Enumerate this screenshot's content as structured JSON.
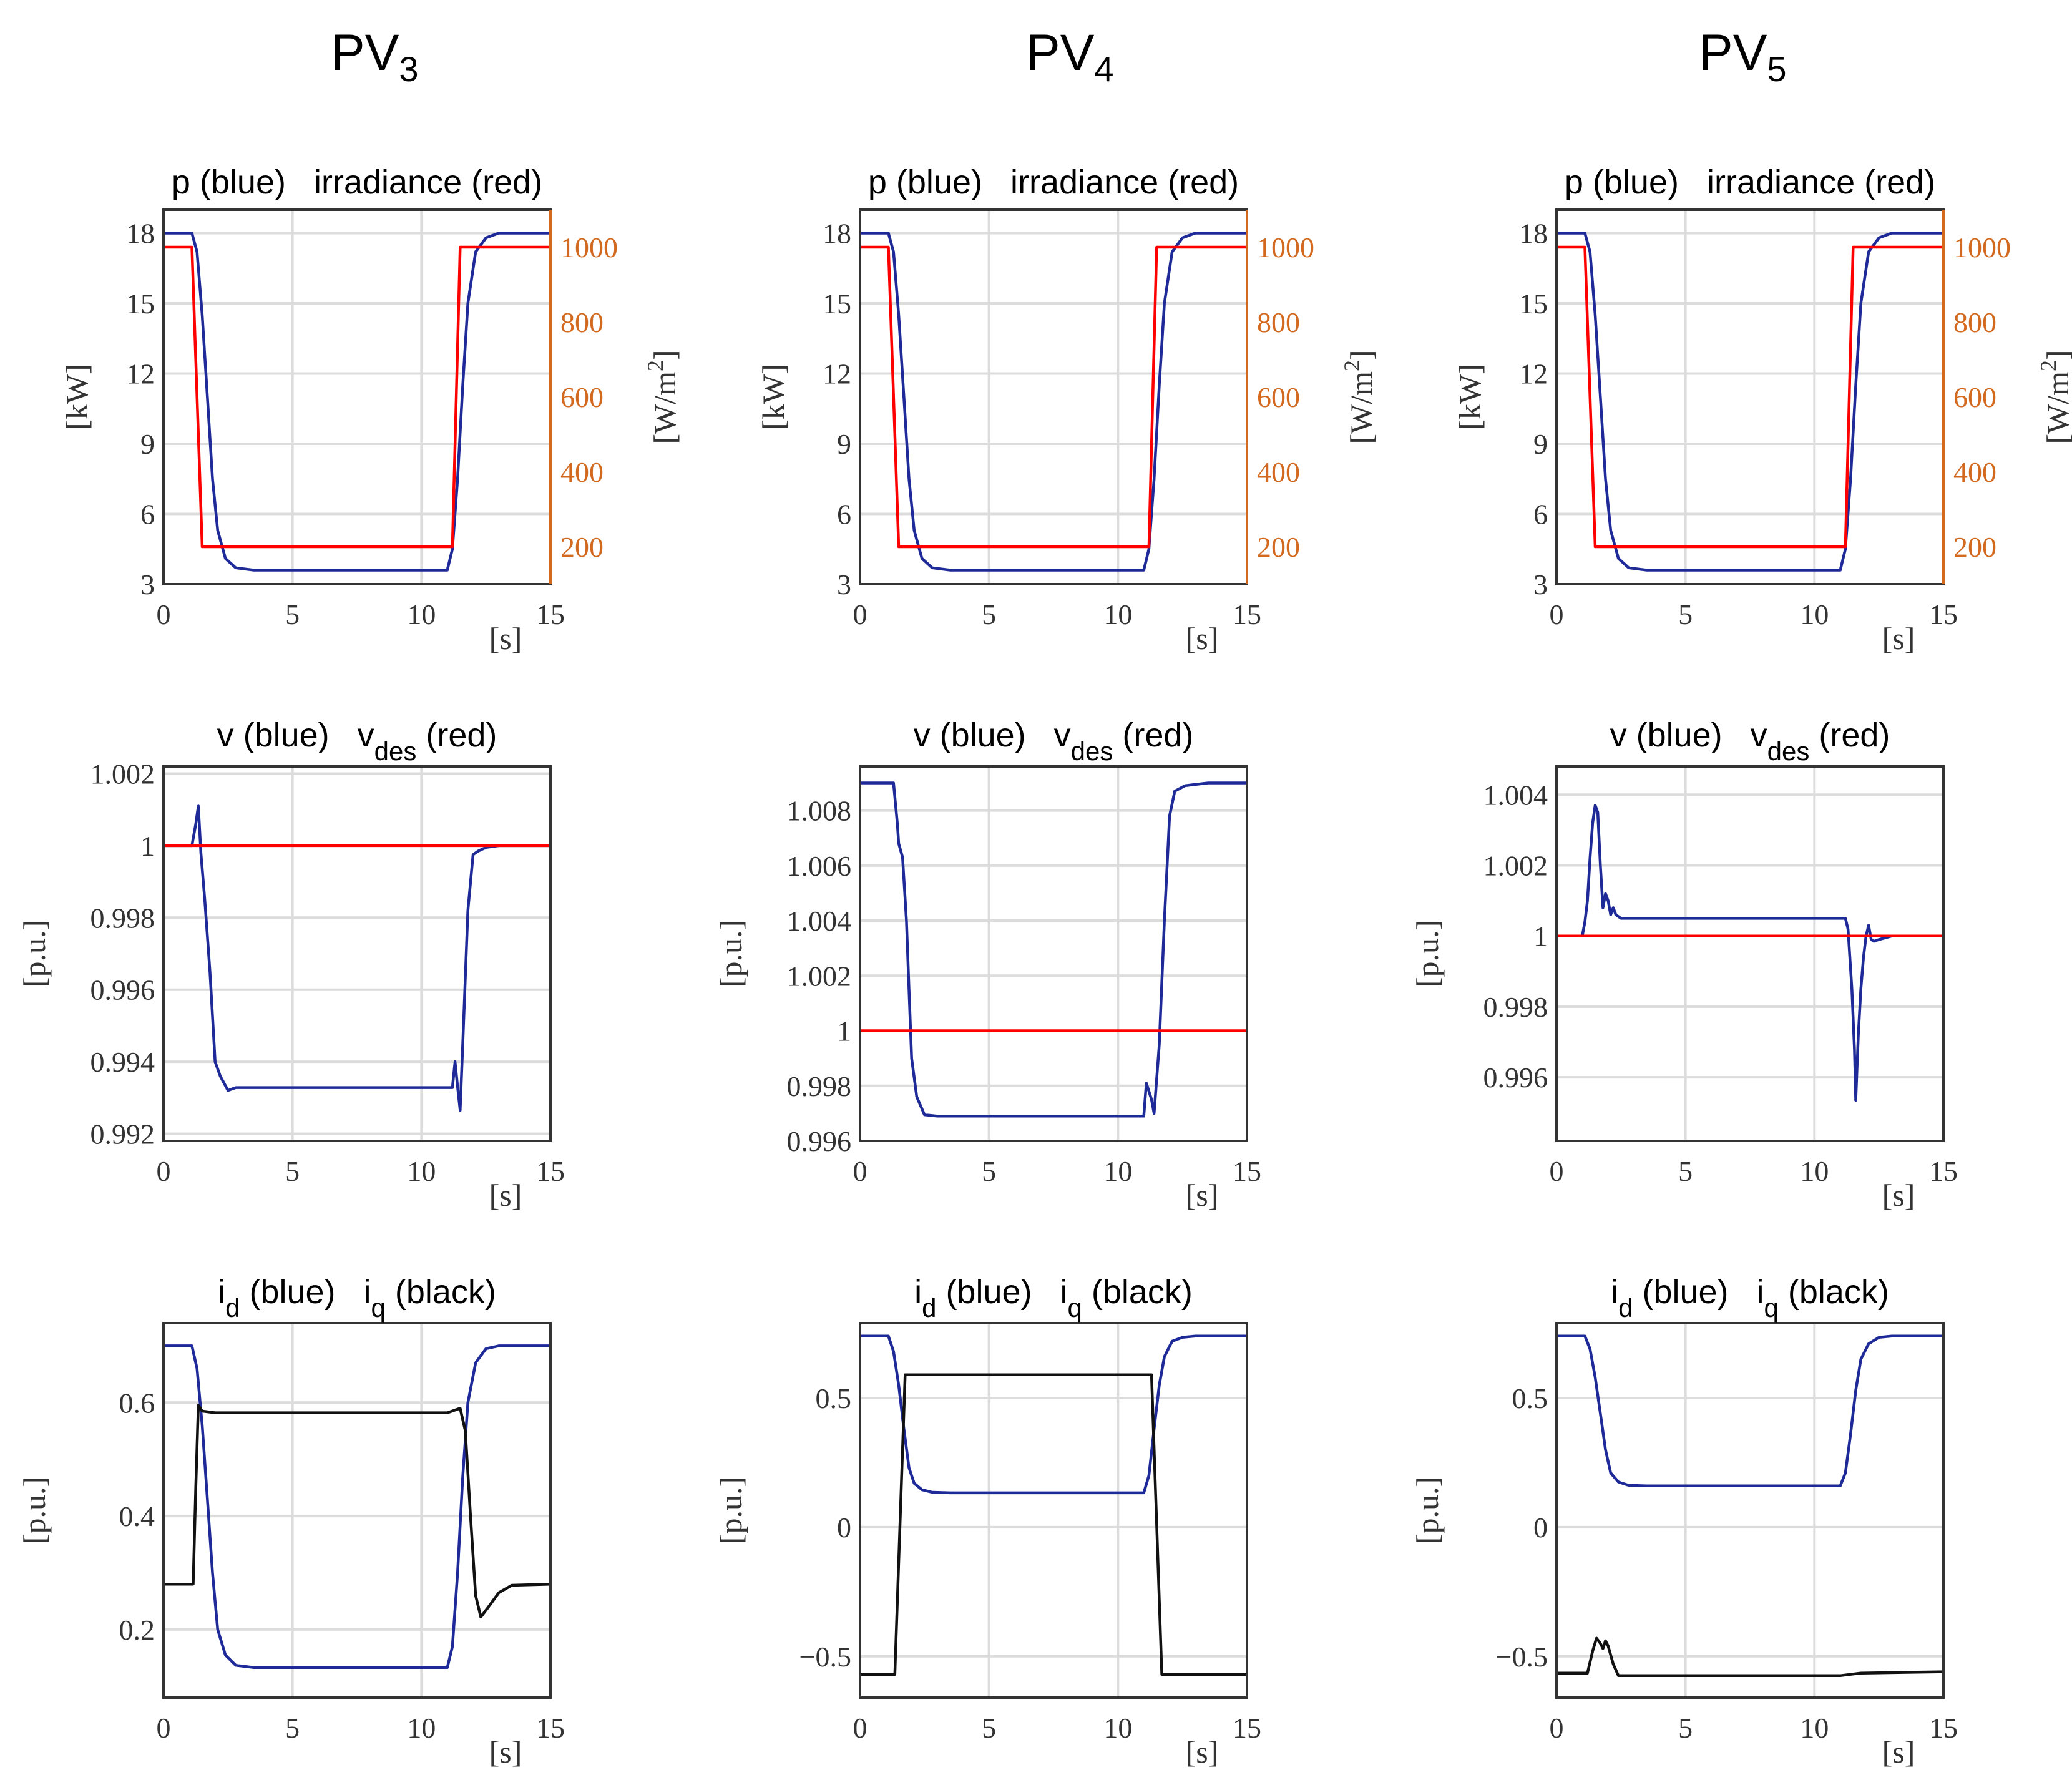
{
  "columns": [
    {
      "title": "PV",
      "subscript": "3"
    },
    {
      "title": "PV",
      "subscript": "4"
    },
    {
      "title": "PV",
      "subscript": "5"
    }
  ],
  "row_titles": {
    "power": {
      "text": "p (blue)   irradiance (red)"
    },
    "voltage": {
      "pre": "v (blue)   v",
      "sub": "des",
      "post": " (red)"
    },
    "current": {
      "a": "i",
      "a_sub": "d",
      "b": " (blue)   i",
      "b_sub": "q",
      "c": " (black)"
    }
  },
  "labels": {
    "power_left": "[kW]",
    "power_right": "[W/m2]",
    "pu": "[p.u.]",
    "time": "[s]"
  },
  "colors": {
    "blue": "#1f2a99",
    "red": "#ff0000",
    "black": "#111111",
    "orange": "#d2691e"
  },
  "chart_data": [
    {
      "type": "line",
      "id": "pv3-power",
      "title": "p (blue)   irradiance (red)",
      "xlabel": "[s]",
      "ylabel": "[kW]",
      "y2label": "[W/m2]",
      "xlim": [
        0,
        15
      ],
      "xticks": [
        0,
        5,
        10,
        15
      ],
      "ylim": [
        3,
        19
      ],
      "yticks": [
        3,
        6,
        9,
        12,
        15,
        18
      ],
      "y2lim": [
        100,
        1100
      ],
      "y2ticks": [
        200,
        400,
        600,
        800,
        1000
      ],
      "series": [
        {
          "name": "p",
          "color": "blue",
          "axis": "left",
          "x": [
            0,
            1.1,
            1.3,
            1.5,
            1.7,
            1.9,
            2.1,
            2.4,
            2.8,
            3.5,
            11.0,
            11.2,
            11.4,
            11.6,
            11.8,
            12.1,
            12.5,
            13.0,
            15
          ],
          "y": [
            18,
            18,
            17.2,
            14.5,
            11,
            7.5,
            5.3,
            4.1,
            3.7,
            3.6,
            3.6,
            4.5,
            7.5,
            11.5,
            15,
            17.2,
            17.8,
            18,
            18
          ]
        },
        {
          "name": "irradiance",
          "color": "red",
          "axis": "right",
          "x": [
            0,
            1.1,
            1.5,
            11.2,
            11.5,
            15
          ],
          "y": [
            1000,
            1000,
            200,
            200,
            1000,
            1000
          ]
        }
      ]
    },
    {
      "type": "line",
      "id": "pv4-power",
      "title": "p (blue)   irradiance (red)",
      "xlabel": "[s]",
      "ylabel": "[kW]",
      "y2label": "[W/m2]",
      "xlim": [
        0,
        15
      ],
      "xticks": [
        0,
        5,
        10,
        15
      ],
      "ylim": [
        3,
        19
      ],
      "yticks": [
        3,
        6,
        9,
        12,
        15,
        18
      ],
      "y2lim": [
        100,
        1100
      ],
      "y2ticks": [
        200,
        400,
        600,
        800,
        1000
      ],
      "series": [
        {
          "name": "p",
          "color": "blue",
          "axis": "left",
          "x": [
            0,
            1.1,
            1.3,
            1.5,
            1.7,
            1.9,
            2.1,
            2.4,
            2.8,
            3.5,
            11.0,
            11.2,
            11.4,
            11.6,
            11.8,
            12.1,
            12.5,
            13.0,
            15
          ],
          "y": [
            18,
            18,
            17.2,
            14.5,
            11,
            7.5,
            5.3,
            4.1,
            3.7,
            3.6,
            3.6,
            4.5,
            7.5,
            11.5,
            15,
            17.2,
            17.8,
            18,
            18
          ]
        },
        {
          "name": "irradiance",
          "color": "red",
          "axis": "right",
          "x": [
            0,
            1.1,
            1.5,
            11.2,
            11.5,
            15
          ],
          "y": [
            1000,
            1000,
            200,
            200,
            1000,
            1000
          ]
        }
      ]
    },
    {
      "type": "line",
      "id": "pv5-power",
      "title": "p (blue)   irradiance (red)",
      "xlabel": "[s]",
      "ylabel": "[kW]",
      "y2label": "[W/m2]",
      "xlim": [
        0,
        15
      ],
      "xticks": [
        0,
        5,
        10,
        15
      ],
      "ylim": [
        3,
        19
      ],
      "yticks": [
        3,
        6,
        9,
        12,
        15,
        18
      ],
      "y2lim": [
        100,
        1100
      ],
      "y2ticks": [
        200,
        400,
        600,
        800,
        1000
      ],
      "series": [
        {
          "name": "p",
          "color": "blue",
          "axis": "left",
          "x": [
            0,
            1.1,
            1.3,
            1.5,
            1.7,
            1.9,
            2.1,
            2.4,
            2.8,
            3.5,
            11.0,
            11.2,
            11.4,
            11.6,
            11.8,
            12.1,
            12.5,
            13.0,
            15
          ],
          "y": [
            18,
            18,
            17.2,
            14.5,
            11,
            7.5,
            5.3,
            4.1,
            3.7,
            3.6,
            3.6,
            4.5,
            7.5,
            11.5,
            15,
            17.2,
            17.8,
            18,
            18
          ]
        },
        {
          "name": "irradiance",
          "color": "red",
          "axis": "right",
          "x": [
            0,
            1.1,
            1.5,
            11.2,
            11.5,
            15
          ],
          "y": [
            1000,
            1000,
            200,
            200,
            1000,
            1000
          ]
        }
      ]
    },
    {
      "type": "line",
      "id": "pv3-voltage",
      "title": "v (blue)   vdes (red)",
      "xlabel": "[s]",
      "ylabel": "[p.u.]",
      "xlim": [
        0,
        15
      ],
      "xticks": [
        0,
        5,
        10,
        15
      ],
      "ylim": [
        0.9918,
        1.0022
      ],
      "yticks": [
        0.992,
        0.994,
        0.996,
        0.998,
        1,
        1.002
      ],
      "ytick_labels": [
        "0.992",
        "0.994",
        "0.996",
        "0.998",
        "1",
        "1.002"
      ],
      "series": [
        {
          "name": "v",
          "color": "blue",
          "axis": "left",
          "x": [
            0,
            1.1,
            1.25,
            1.35,
            1.45,
            1.6,
            1.8,
            2.0,
            2.2,
            2.5,
            2.8,
            11.2,
            11.3,
            11.4,
            11.5,
            11.6,
            11.8,
            12.0,
            12.2,
            12.5,
            13,
            15
          ],
          "y": [
            1.0,
            1.0,
            1.0006,
            1.0011,
            0.9998,
            0.9985,
            0.9965,
            0.994,
            0.9936,
            0.9932,
            0.99328,
            0.99328,
            0.994,
            0.9933,
            0.99265,
            0.9945,
            0.9982,
            0.99975,
            0.99985,
            0.99995,
            1.0,
            1.0
          ]
        },
        {
          "name": "vdes",
          "color": "red",
          "axis": "left",
          "x": [
            0,
            15
          ],
          "y": [
            1.0,
            1.0
          ]
        }
      ]
    },
    {
      "type": "line",
      "id": "pv4-voltage",
      "title": "v (blue)   vdes (red)",
      "xlabel": "[s]",
      "ylabel": "[p.u.]",
      "xlim": [
        0,
        15
      ],
      "xticks": [
        0,
        5,
        10,
        15
      ],
      "ylim": [
        0.996,
        1.0096
      ],
      "yticks": [
        0.996,
        0.998,
        1,
        1.002,
        1.004,
        1.006,
        1.008
      ],
      "ytick_labels": [
        "0.996",
        "0.998",
        "1",
        "1.002",
        "1.004",
        "1.006",
        "1.008"
      ],
      "series": [
        {
          "name": "v",
          "color": "blue",
          "axis": "left",
          "x": [
            0,
            1.3,
            1.45,
            1.5,
            1.65,
            1.8,
            1.9,
            2.0,
            2.2,
            2.5,
            3,
            11.0,
            11.1,
            11.3,
            11.4,
            11.6,
            11.8,
            12.0,
            12.2,
            12.6,
            13.5,
            15
          ],
          "y": [
            1.009,
            1.009,
            1.0075,
            1.0068,
            1.0063,
            1.004,
            1.0015,
            0.999,
            0.9976,
            0.99695,
            0.9969,
            0.9969,
            0.9981,
            0.9975,
            0.997,
            0.9995,
            1.004,
            1.0078,
            1.0087,
            1.0089,
            1.009,
            1.009
          ]
        },
        {
          "name": "vdes",
          "color": "red",
          "axis": "left",
          "x": [
            0,
            15
          ],
          "y": [
            1.0,
            1.0
          ]
        }
      ]
    },
    {
      "type": "line",
      "id": "pv5-voltage",
      "title": "v (blue)   vdes (red)",
      "xlabel": "[s]",
      "ylabel": "[p.u.]",
      "xlim": [
        0,
        15
      ],
      "xticks": [
        0,
        5,
        10,
        15
      ],
      "ylim": [
        0.9942,
        1.0048
      ],
      "yticks": [
        0.996,
        0.998,
        1,
        1.002,
        1.004
      ],
      "ytick_labels": [
        "0.996",
        "0.998",
        "1",
        "1.002",
        "1.004"
      ],
      "series": [
        {
          "name": "v",
          "color": "blue",
          "axis": "left",
          "x": [
            0,
            1.0,
            1.1,
            1.2,
            1.3,
            1.4,
            1.5,
            1.6,
            1.7,
            1.8,
            1.9,
            2.0,
            2.1,
            2.2,
            2.3,
            2.5,
            3.0,
            11.2,
            11.3,
            11.45,
            11.55,
            11.6,
            11.7,
            11.8,
            11.9,
            12.0,
            12.1,
            12.2,
            12.3,
            12.5,
            13,
            15
          ],
          "y": [
            1.0,
            1.0,
            1.0004,
            1.001,
            1.0022,
            1.0032,
            1.0037,
            1.0035,
            1.002,
            1.0008,
            1.0012,
            1.001,
            1.0006,
            1.0008,
            1.0006,
            1.0005,
            1.0005,
            1.0005,
            1.0002,
            0.9985,
            0.9968,
            0.99535,
            0.9972,
            0.9985,
            0.9994,
            1.0,
            1.0003,
            0.9999,
            0.99985,
            0.9999,
            1.0,
            1.0
          ]
        },
        {
          "name": "vdes",
          "color": "red",
          "axis": "left",
          "x": [
            0,
            15
          ],
          "y": [
            1.0,
            1.0
          ]
        }
      ]
    },
    {
      "type": "line",
      "id": "pv3-current",
      "title": "id (blue)   iq (black)",
      "xlabel": "[s]",
      "ylabel": "[p.u.]",
      "xlim": [
        0,
        15
      ],
      "xticks": [
        0,
        5,
        10,
        15
      ],
      "ylim": [
        0.08,
        0.74
      ],
      "yticks": [
        0.2,
        0.4,
        0.6
      ],
      "ytick_labels": [
        "0.2",
        "0.4",
        "0.6"
      ],
      "series": [
        {
          "name": "id",
          "color": "blue",
          "axis": "left",
          "x": [
            0,
            1.1,
            1.3,
            1.5,
            1.7,
            1.9,
            2.1,
            2.4,
            2.8,
            3.5,
            11.0,
            11.2,
            11.4,
            11.6,
            11.8,
            12.1,
            12.5,
            13.0,
            15
          ],
          "y": [
            0.7,
            0.7,
            0.66,
            0.56,
            0.43,
            0.3,
            0.2,
            0.155,
            0.137,
            0.133,
            0.133,
            0.17,
            0.3,
            0.47,
            0.6,
            0.67,
            0.695,
            0.7,
            0.7
          ]
        },
        {
          "name": "iq",
          "color": "black",
          "axis": "left",
          "x": [
            0,
            1.15,
            1.25,
            1.35,
            1.5,
            2.0,
            11.0,
            11.5,
            11.7,
            11.9,
            12.1,
            12.3,
            12.6,
            13.0,
            13.5,
            15
          ],
          "y": [
            0.28,
            0.28,
            0.45,
            0.595,
            0.585,
            0.582,
            0.582,
            0.59,
            0.55,
            0.4,
            0.26,
            0.222,
            0.24,
            0.265,
            0.278,
            0.28
          ]
        }
      ]
    },
    {
      "type": "line",
      "id": "pv4-current",
      "title": "id (blue)   iq (black)",
      "xlabel": "[s]",
      "ylabel": "[p.u.]",
      "xlim": [
        0,
        15
      ],
      "xticks": [
        0,
        5,
        10,
        15
      ],
      "ylim": [
        -0.66,
        0.79
      ],
      "yticks": [
        -0.5,
        0,
        0.5
      ],
      "ytick_labels": [
        "−0.5",
        "0",
        "0.5"
      ],
      "series": [
        {
          "name": "id",
          "color": "blue",
          "axis": "left",
          "x": [
            0,
            1.1,
            1.3,
            1.5,
            1.7,
            1.9,
            2.1,
            2.4,
            2.8,
            3.5,
            11.0,
            11.2,
            11.4,
            11.6,
            11.8,
            12.1,
            12.5,
            13.0,
            15
          ],
          "y": [
            0.74,
            0.74,
            0.68,
            0.55,
            0.38,
            0.23,
            0.17,
            0.145,
            0.135,
            0.133,
            0.133,
            0.2,
            0.38,
            0.55,
            0.66,
            0.72,
            0.735,
            0.74,
            0.74
          ]
        },
        {
          "name": "iq",
          "color": "black",
          "axis": "left",
          "x": [
            0,
            1.35,
            1.75,
            11.3,
            11.7,
            15
          ],
          "y": [
            -0.57,
            -0.57,
            0.59,
            0.59,
            -0.57,
            -0.57
          ]
        }
      ]
    },
    {
      "type": "line",
      "id": "pv5-current",
      "title": "id (blue)   iq (black)",
      "xlabel": "[s]",
      "ylabel": "[p.u.]",
      "xlim": [
        0,
        15
      ],
      "xticks": [
        0,
        5,
        10,
        15
      ],
      "ylim": [
        -0.66,
        0.79
      ],
      "yticks": [
        -0.5,
        0,
        0.5
      ],
      "ytick_labels": [
        "−0.5",
        "0",
        "0.5"
      ],
      "series": [
        {
          "name": "id",
          "color": "blue",
          "axis": "left",
          "x": [
            0,
            1.1,
            1.3,
            1.5,
            1.7,
            1.9,
            2.1,
            2.4,
            2.8,
            3.5,
            11.0,
            11.2,
            11.4,
            11.6,
            11.8,
            12.1,
            12.5,
            13.0,
            15
          ],
          "y": [
            0.74,
            0.74,
            0.69,
            0.58,
            0.44,
            0.3,
            0.21,
            0.175,
            0.162,
            0.16,
            0.16,
            0.21,
            0.36,
            0.53,
            0.65,
            0.71,
            0.735,
            0.74,
            0.74
          ]
        },
        {
          "name": "iq",
          "color": "black",
          "axis": "left",
          "x": [
            0,
            1.2,
            1.4,
            1.55,
            1.7,
            1.8,
            1.9,
            2.0,
            2.2,
            2.4,
            11.0,
            11.8,
            15
          ],
          "y": [
            -0.565,
            -0.565,
            -0.48,
            -0.43,
            -0.45,
            -0.47,
            -0.44,
            -0.46,
            -0.53,
            -0.575,
            -0.575,
            -0.565,
            -0.56
          ]
        }
      ]
    }
  ]
}
